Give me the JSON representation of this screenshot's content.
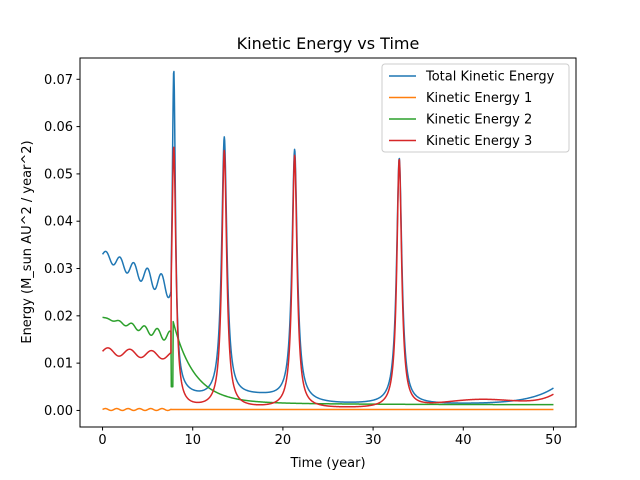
{
  "chart_data": {
    "type": "line",
    "title": "Kinetic Energy vs Time",
    "xlabel": "Time (year)",
    "ylabel": "Energy (M_sun AU^2 / year^2)",
    "xlim": [
      -2.5,
      52.5
    ],
    "ylim": [
      -0.0035,
      0.0745
    ],
    "xticks": [
      0,
      10,
      20,
      30,
      40,
      50
    ],
    "yticks": [
      0.0,
      0.01,
      0.02,
      0.03,
      0.04,
      0.05,
      0.06,
      0.07
    ],
    "xtick_labels": [
      "0",
      "10",
      "20",
      "30",
      "40",
      "50"
    ],
    "ytick_labels": [
      "0.00",
      "0.01",
      "0.02",
      "0.03",
      "0.04",
      "0.05",
      "0.06",
      "0.07"
    ],
    "grid": false,
    "legend_position": "top-right",
    "series": [
      {
        "name": "Total Kinetic Energy",
        "color": "#1f77b4",
        "key": "total"
      },
      {
        "name": "Kinetic Energy 1",
        "color": "#ff7f0e",
        "key": "ke1"
      },
      {
        "name": "Kinetic Energy 2",
        "color": "#2ca02c",
        "key": "ke2"
      },
      {
        "name": "Kinetic Energy 3",
        "color": "#d62728",
        "key": "ke3"
      }
    ],
    "events": {
      "early_end": 7.6,
      "disruption": [
        7.6,
        7.8,
        8.0
      ],
      "close_approaches": [
        7.9,
        13.5,
        21.3,
        32.9
      ],
      "peak_values_total": [
        0.0708,
        0.057,
        0.055,
        0.054
      ],
      "peak_values_ke3": [
        0.0552,
        0.0543,
        0.0534,
        0.0525
      ],
      "ke2_final": 0.0012,
      "total_min": 0.0015,
      "total_end": 0.0047,
      "ke3_end": 0.0035
    }
  }
}
